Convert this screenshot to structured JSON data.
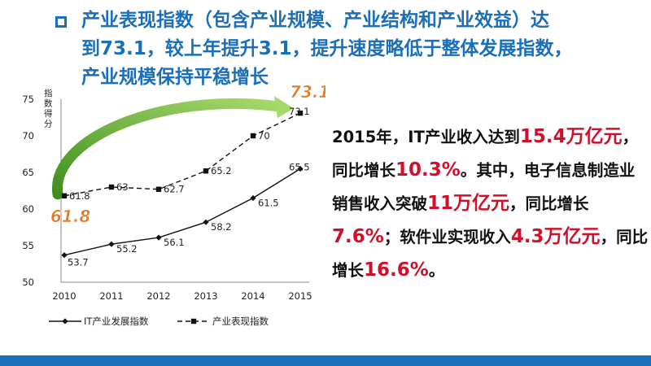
{
  "title": {
    "text": "产业表现指数（包含产业规模、产业结构和产业效益）达\n到73.1，较上年提升3.1，提升速度略低于整体发展指数，\n产业规模保持平稳增长"
  },
  "colors": {
    "title_blue": "#1b6fb8",
    "highlight_red": "#d0102b",
    "callout_orange": "#e07b2a",
    "arrow_green": "#5aa82d"
  },
  "chart_data": {
    "type": "line",
    "categories": [
      "2010",
      "2011",
      "2012",
      "2013",
      "2014",
      "2015"
    ],
    "ylim": [
      50,
      75
    ],
    "yticks": [
      "75",
      "70",
      "65",
      "60",
      "55",
      "50"
    ],
    "ylabel": "指数得分",
    "series": [
      {
        "name": "IT产业发展指数",
        "style": "solid",
        "marker": "diamond",
        "values": [
          53.7,
          55.2,
          56.1,
          58.2,
          61.5,
          65.5
        ],
        "labels": [
          "53.7",
          "55.2",
          "56.1",
          "58.2",
          "61.5",
          "65.5"
        ]
      },
      {
        "name": "产业表现指数",
        "style": "dashed",
        "marker": "square",
        "values": [
          61.8,
          63,
          62.7,
          65.2,
          70,
          73.1
        ],
        "labels": [
          "61.8",
          "63",
          "62.7",
          "65.2",
          "70",
          "73.1"
        ]
      }
    ],
    "callouts": {
      "start": "61.8",
      "end": "73.1"
    },
    "legend_position": "bottom"
  },
  "body": {
    "p1": "2015年，IT产业收入达到",
    "v1": "15.4万亿元",
    "p2": "，同比增长",
    "v2": "10.3%",
    "p3": "。其中，电子信息制造业销售收入突破",
    "v3": "11万亿元",
    "p4": "，同比增长",
    "v4": "7.6%",
    "p5": "；软件业实现收入",
    "v5": "4.3万亿元",
    "p6": "，同比增长",
    "v6": "16.6%",
    "p7": "。"
  }
}
